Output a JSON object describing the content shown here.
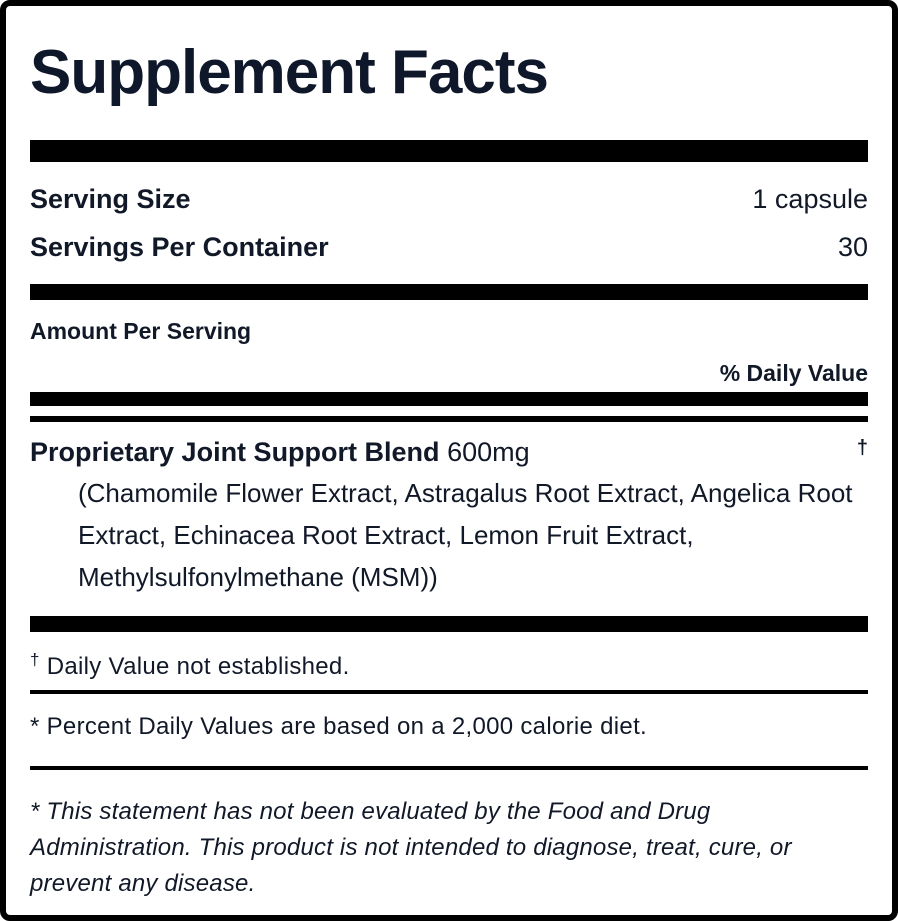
{
  "label": {
    "title": "Supplement Facts",
    "serving": {
      "size_label": "Serving Size",
      "size_value": "1 capsule",
      "per_container_label": "Servings Per Container",
      "per_container_value": "30"
    },
    "columns": {
      "amount_per_serving": "Amount Per Serving",
      "percent_daily_value": "% Daily Value"
    },
    "ingredients": [
      {
        "name": "Proprietary Joint Support Blend",
        "amount": "600mg",
        "daily_value_symbol": "†",
        "components": "(Chamomile Flower Extract, Astragalus Root Extract, Angelica Root Extract, Echinacea Root Extract, Lemon Fruit Extract, Methylsulfonylmethane (MSM))"
      }
    ],
    "footnotes": {
      "dagger_symbol": "†",
      "dagger_text": "Daily Value not established.",
      "asterisk_text": "* Percent Daily Values are based on a 2,000 calorie diet.",
      "disclaimer": "* This statement has not been evaluated by the Food and Drug Administration. This product is not intended to diagnose, treat, cure, or prevent any disease."
    },
    "colors": {
      "text": "#111827",
      "title_text": "#0f172a",
      "rule": "#000000",
      "background": "#ffffff"
    }
  }
}
